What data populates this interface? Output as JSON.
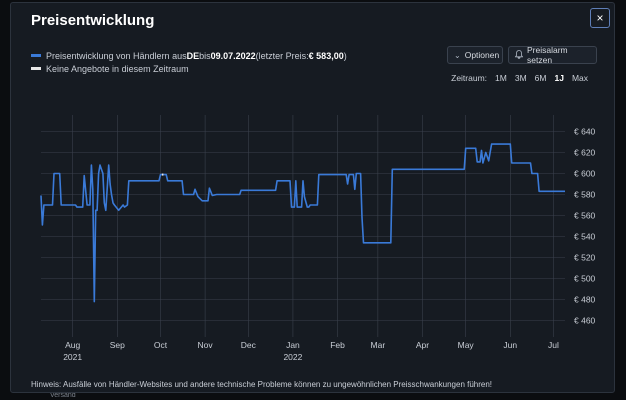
{
  "modal": {
    "title": "Preisentwicklung",
    "close_icon": "×"
  },
  "legend": {
    "row1_prefix": "Preisentwicklung von Händlern aus ",
    "row1_country": "DE",
    "row1_mid": " bis ",
    "row1_date": "09.07.2022",
    "row1_last_label": " (letzter Preis: ",
    "row1_last_price": "€ 583,00",
    "row1_close": ")",
    "row2": "Keine Angebote in diesem Zeitraum",
    "colors": {
      "price": "#3a7ad8",
      "none": "#e8e8e8"
    }
  },
  "buttons": {
    "options": "Optionen",
    "alarm": "Preisalarm setzen"
  },
  "range": {
    "label": "Zeitraum:",
    "options": [
      "1M",
      "3M",
      "6M",
      "1J",
      "Max"
    ],
    "active": "1J"
  },
  "chart_data": {
    "type": "line",
    "xlabels": [
      "Aug",
      "Sep",
      "Oct",
      "Nov",
      "Dec",
      "Jan",
      "Feb",
      "Mar",
      "Apr",
      "May",
      "Jun",
      "Jul"
    ],
    "xlabels_year": {
      "Aug": "2021",
      "Jan": "2022"
    },
    "x_range": [
      "2021-07-10",
      "2022-07-09"
    ],
    "ylim": [
      450,
      650
    ],
    "yticks": [
      460,
      480,
      500,
      520,
      540,
      560,
      580,
      600,
      620,
      640
    ],
    "ytick_labels": [
      "€ 460",
      "€ 480",
      "€ 500",
      "€ 520",
      "€ 540",
      "€ 560",
      "€ 580",
      "€ 600",
      "€ 620",
      "€ 640"
    ],
    "grid": true,
    "series": [
      {
        "points": [
          [
            "2021-07-10",
            579
          ],
          [
            "2021-07-11",
            551
          ],
          [
            "2021-07-12",
            570
          ],
          [
            "2021-07-18",
            570
          ],
          [
            "2021-07-19",
            600
          ],
          [
            "2021-07-23",
            600
          ],
          [
            "2021-07-24",
            570
          ],
          [
            "2021-08-03",
            570
          ],
          [
            "2021-08-04",
            568
          ],
          [
            "2021-08-08",
            568
          ],
          [
            "2021-08-09",
            598
          ],
          [
            "2021-08-11",
            570
          ],
          [
            "2021-08-13",
            570
          ],
          [
            "2021-08-14",
            608
          ],
          [
            "2021-08-15",
            585
          ],
          [
            "2021-08-16",
            478
          ],
          [
            "2021-08-17",
            565
          ],
          [
            "2021-08-18",
            565
          ],
          [
            "2021-08-19",
            600
          ],
          [
            "2021-08-20",
            608
          ],
          [
            "2021-08-22",
            600
          ],
          [
            "2021-08-23",
            572
          ],
          [
            "2021-08-24",
            565
          ],
          [
            "2021-08-26",
            608
          ],
          [
            "2021-08-27",
            590
          ],
          [
            "2021-08-28",
            580
          ],
          [
            "2021-08-29",
            572
          ],
          [
            "2021-08-30",
            570
          ],
          [
            "2021-09-02",
            565
          ],
          [
            "2021-09-05",
            570
          ],
          [
            "2021-09-06",
            568
          ],
          [
            "2021-09-08",
            570
          ],
          [
            "2021-09-09",
            593
          ],
          [
            "2021-09-30",
            593
          ],
          [
            "2021-10-01",
            599
          ],
          [
            "2021-10-05",
            599
          ],
          [
            "2021-10-06",
            593
          ],
          [
            "2021-10-16",
            593
          ],
          [
            "2021-10-17",
            580
          ],
          [
            "2021-10-24",
            580
          ],
          [
            "2021-10-25",
            585
          ],
          [
            "2021-10-27",
            578
          ],
          [
            "2021-10-30",
            574
          ],
          [
            "2021-11-03",
            574
          ],
          [
            "2021-11-04",
            586
          ],
          [
            "2021-11-06",
            579
          ],
          [
            "2021-11-09",
            580
          ],
          [
            "2021-11-25",
            580
          ],
          [
            "2021-11-26",
            584
          ],
          [
            "2021-12-20",
            584
          ],
          [
            "2021-12-21",
            593
          ],
          [
            "2021-12-30",
            593
          ],
          [
            "2021-12-31",
            568
          ],
          [
            "2022-01-02",
            568
          ],
          [
            "2022-01-03",
            593
          ],
          [
            "2022-01-04",
            568
          ],
          [
            "2022-01-07",
            568
          ],
          [
            "2022-01-08",
            593
          ],
          [
            "2022-01-09",
            578
          ],
          [
            "2022-01-11",
            568
          ],
          [
            "2022-01-12",
            568
          ],
          [
            "2022-01-13",
            570
          ],
          [
            "2022-01-18",
            570
          ],
          [
            "2022-01-19",
            599
          ],
          [
            "2022-02-07",
            599
          ],
          [
            "2022-02-08",
            590
          ],
          [
            "2022-02-09",
            599
          ],
          [
            "2022-02-12",
            599
          ],
          [
            "2022-02-13",
            585
          ],
          [
            "2022-02-14",
            600
          ],
          [
            "2022-02-17",
            600
          ],
          [
            "2022-02-18",
            558
          ],
          [
            "2022-02-19",
            534
          ],
          [
            "2022-03-10",
            534
          ],
          [
            "2022-03-11",
            604
          ],
          [
            "2022-04-30",
            604
          ],
          [
            "2022-05-01",
            624
          ],
          [
            "2022-05-08",
            624
          ],
          [
            "2022-05-09",
            611
          ],
          [
            "2022-05-11",
            611
          ],
          [
            "2022-05-12",
            622
          ],
          [
            "2022-05-13",
            610
          ],
          [
            "2022-05-15",
            620
          ],
          [
            "2022-05-17",
            612
          ],
          [
            "2022-05-18",
            620
          ],
          [
            "2022-05-19",
            628
          ],
          [
            "2022-06-01",
            628
          ],
          [
            "2022-06-02",
            610
          ],
          [
            "2022-06-15",
            610
          ],
          [
            "2022-06-16",
            600
          ],
          [
            "2022-06-20",
            600
          ],
          [
            "2022-06-21",
            583
          ],
          [
            "2022-07-09",
            583
          ]
        ]
      }
    ],
    "no_offer_segments": [
      {
        "points": [
          [
            "2021-10-02",
            599
          ],
          [
            "2021-10-03",
            599
          ]
        ]
      }
    ]
  },
  "hint": "Hinweis: Ausfälle von Händler-Websites und andere technische Probleme können zu ungewöhnlichen Preisschwankungen führen!",
  "background": {
    "label": "Versand"
  }
}
